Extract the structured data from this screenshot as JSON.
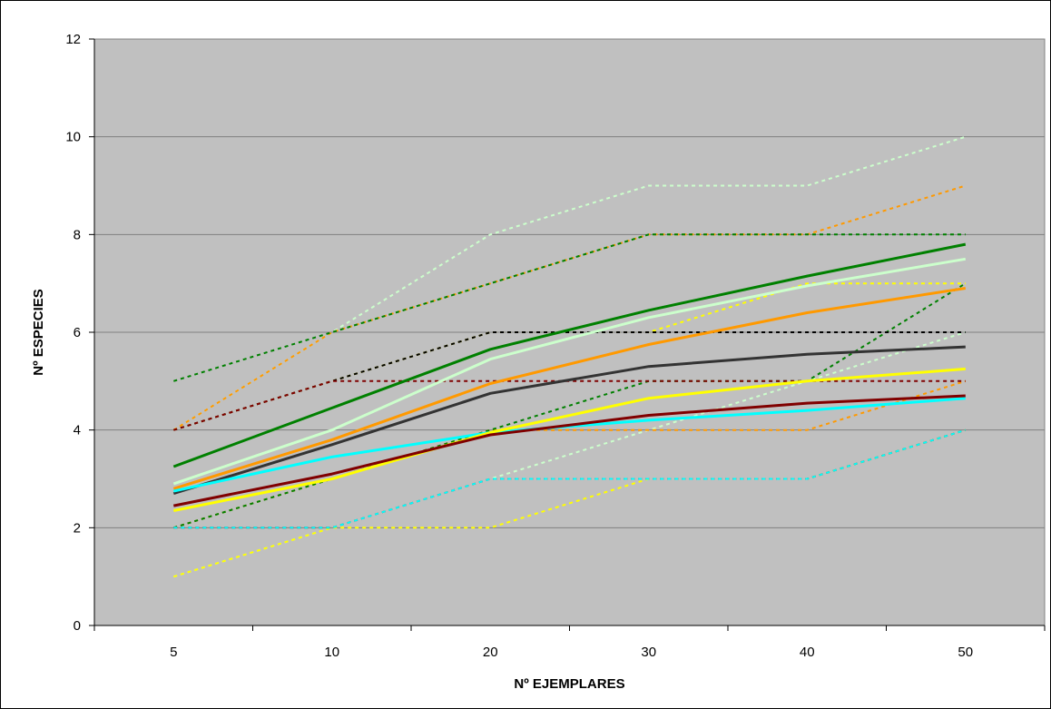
{
  "chart_data": {
    "type": "line",
    "title": "",
    "xlabel": "Nº EJEMPLARES",
    "ylabel": "Nº ESPECIES",
    "categories": [
      "5",
      "10",
      "20",
      "30",
      "40",
      "50"
    ],
    "ylim": [
      0,
      12
    ],
    "yticks": [
      0,
      2,
      4,
      6,
      8,
      10,
      12
    ],
    "grid": true,
    "legend": "none",
    "plot_background": "#C0C0C0",
    "series": [
      {
        "color": "#008000",
        "style": "solid",
        "values": [
          3.25,
          4.45,
          5.65,
          6.45,
          7.15,
          7.8
        ]
      },
      {
        "color": "#CCFFCC",
        "style": "solid",
        "values": [
          2.9,
          4.0,
          5.45,
          6.3,
          6.95,
          7.5
        ]
      },
      {
        "color": "#FF9900",
        "style": "solid",
        "values": [
          2.8,
          3.8,
          4.95,
          5.75,
          6.4,
          6.9
        ]
      },
      {
        "color": "#333333",
        "style": "solid",
        "values": [
          2.7,
          3.7,
          4.75,
          5.3,
          5.55,
          5.7
        ]
      },
      {
        "color": "#00FFFF",
        "style": "solid",
        "values": [
          2.75,
          3.45,
          3.95,
          4.2,
          4.4,
          4.65
        ]
      },
      {
        "color": "#FFFF00",
        "style": "solid",
        "values": [
          2.35,
          3.0,
          3.95,
          4.65,
          5.0,
          5.25
        ]
      },
      {
        "color": "#800000",
        "style": "solid",
        "values": [
          2.45,
          3.1,
          3.9,
          4.3,
          4.55,
          4.7
        ]
      },
      {
        "color": "#CCFFCC",
        "style": "dotted",
        "values": [
          4,
          6,
          8,
          9,
          9,
          10
        ]
      },
      {
        "color": "#CCFFCC",
        "style": "dotted",
        "values": [
          1,
          2,
          3,
          4,
          5,
          6
        ]
      },
      {
        "color": "#FF9900",
        "style": "dotted",
        "values": [
          4,
          6,
          7,
          8,
          8,
          9
        ]
      },
      {
        "color": "#FF9900",
        "style": "dotted",
        "values": [
          2,
          3,
          4,
          4,
          4,
          5
        ]
      },
      {
        "color": "#008000",
        "style": "dotted",
        "values": [
          5,
          6,
          7,
          8,
          8,
          8
        ]
      },
      {
        "color": "#008000",
        "style": "dotted",
        "values": [
          2,
          3,
          4,
          5,
          5,
          7
        ]
      },
      {
        "color": "#FFFF00",
        "style": "dotted",
        "values": [
          4,
          5,
          6,
          6,
          7,
          7
        ]
      },
      {
        "color": "#FFFF00",
        "style": "dotted",
        "values": [
          1,
          2,
          2,
          3,
          3,
          4
        ]
      },
      {
        "color": "#000000",
        "style": "dotted",
        "values": [
          4,
          5,
          6,
          6,
          6,
          6
        ]
      },
      {
        "color": "#800000",
        "style": "dotted",
        "values": [
          4,
          5,
          5,
          5,
          5,
          5
        ]
      },
      {
        "color": "#800000",
        "style": "dotted",
        "values": [
          2,
          2,
          3,
          3,
          3,
          4
        ]
      },
      {
        "color": "#00FFFF",
        "style": "dotted",
        "values": [
          2,
          2,
          3,
          3,
          3,
          4
        ]
      }
    ]
  }
}
